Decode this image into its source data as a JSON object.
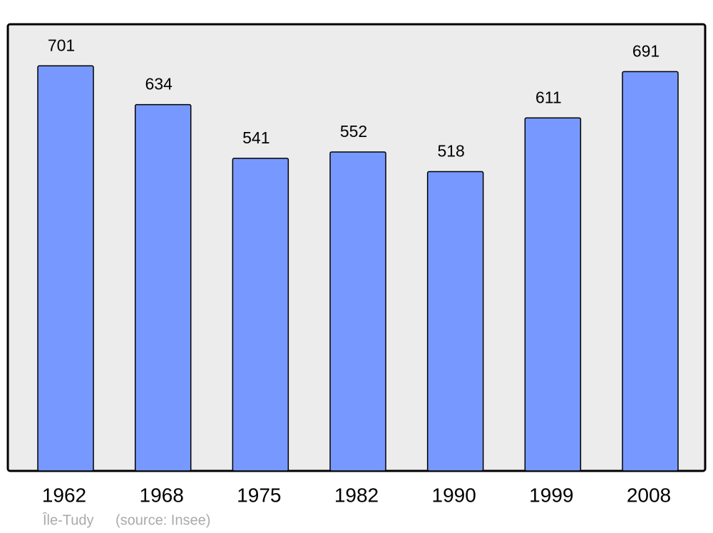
{
  "chart_data": {
    "type": "bar",
    "categories": [
      "1962",
      "1968",
      "1975",
      "1982",
      "1990",
      "1999",
      "2008"
    ],
    "values": [
      701,
      634,
      541,
      552,
      518,
      611,
      691
    ],
    "color": "#7799ff",
    "ylim": [
      0,
      773
    ],
    "caption": "Île-Tudy",
    "source": "(source: Insee)"
  }
}
